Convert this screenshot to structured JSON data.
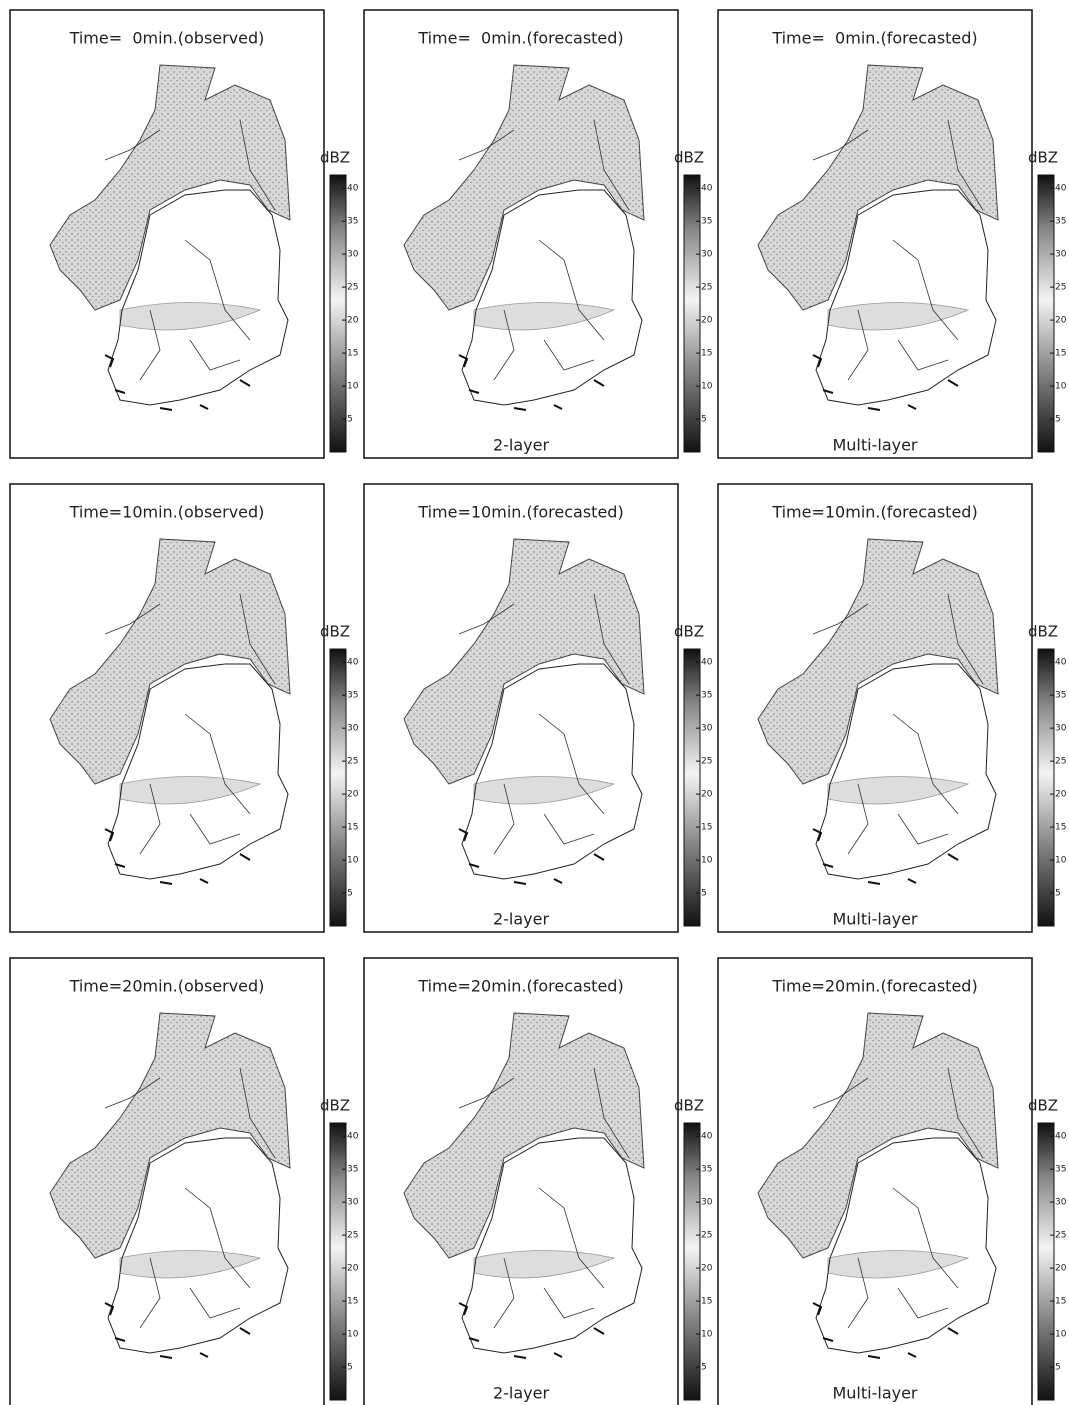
{
  "panels": [
    {
      "title": "Time=  0min.(observed)"
    },
    {
      "title": "Time=  0min.(forecasted)",
      "caption": "2-layer"
    },
    {
      "title": "Time=  0min.(forecasted)",
      "caption": "Multi-layer"
    },
    {
      "title": "Time=10min.(observed)"
    },
    {
      "title": "Time=10min.(forecasted)",
      "caption": "2-layer"
    },
    {
      "title": "Time=10min.(forecasted)",
      "caption": "Multi-layer"
    },
    {
      "title": "Time=20min.(observed)"
    },
    {
      "title": "Time=20min.(forecasted)",
      "caption": "2-layer"
    },
    {
      "title": "Time=20min.(forecasted)",
      "caption": "Multi-layer"
    }
  ],
  "colorbar": {
    "label": "dBZ",
    "lim": [
      0,
      42
    ],
    "ticks": [
      5,
      10,
      15,
      20,
      25,
      30,
      35,
      40
    ]
  }
}
